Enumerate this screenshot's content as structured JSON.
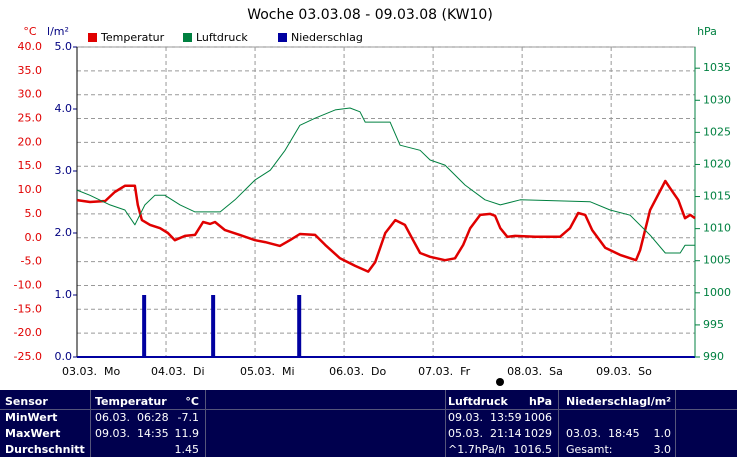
{
  "chart_data": {
    "type": "line",
    "title": "Woche 03.03.08 - 09.03.08 (KW10)",
    "y_unit": "°C",
    "y2_unit": "l/m²",
    "y3_unit": "hPa",
    "xlim": [
      0,
      166.6
    ],
    "xticks": [
      {
        "value": 0,
        "label": "03.03.  Mo"
      },
      {
        "value": 24,
        "label": "04.03.  Di"
      },
      {
        "value": 48,
        "label": "05.03.  Mi"
      },
      {
        "value": 72,
        "label": "06.03.  Do"
      },
      {
        "value": 96,
        "label": "07.03.  Fr"
      },
      {
        "value": 120,
        "label": "08.03.  Sa"
      },
      {
        "value": 144,
        "label": "09.03.  So"
      }
    ],
    "ylim": [
      -25,
      40
    ],
    "yticks": [
      {
        "value": 40,
        "label": "40.0"
      },
      {
        "value": 35,
        "label": "35.0"
      },
      {
        "value": 30,
        "label": "30.0"
      },
      {
        "value": 25,
        "label": "25.0"
      },
      {
        "value": 20,
        "label": "20.0"
      },
      {
        "value": 15,
        "label": "15.0"
      },
      {
        "value": 10,
        "label": "10.0"
      },
      {
        "value": 5,
        "label": "5.0"
      },
      {
        "value": 0,
        "label": "0.0"
      },
      {
        "value": -5,
        "label": "-5.0"
      },
      {
        "value": -10,
        "label": "-10.0"
      },
      {
        "value": -15,
        "label": "-15.0"
      },
      {
        "value": -20,
        "label": "-20.0"
      },
      {
        "value": -25,
        "label": "-25.0"
      }
    ],
    "y2lim": [
      0,
      5
    ],
    "y2ticks": [
      {
        "value": 5,
        "label": "5.0"
      },
      {
        "value": 4,
        "label": "4.0"
      },
      {
        "value": 3,
        "label": "3.0"
      },
      {
        "value": 2,
        "label": "2.0"
      },
      {
        "value": 1,
        "label": "1.0"
      },
      {
        "value": 0,
        "label": "0.0"
      }
    ],
    "y3lim": [
      990,
      1038.3
    ],
    "y3ticks": [
      990,
      995,
      1000,
      1005,
      1010,
      1015,
      1020,
      1025,
      1030,
      1035
    ],
    "grid": true,
    "series": [
      {
        "name": "Temperatur",
        "color": "#e00000",
        "type": "line",
        "axis": "y",
        "x": [
          0,
          3.5,
          7.6,
          10.2,
          12.9,
          15.6,
          16.4,
          17.5,
          19.7,
          22.4,
          24.5,
          26.4,
          29.1,
          31.8,
          34.0,
          35.9,
          37.2,
          39.9,
          43.9,
          48.0,
          50.7,
          54.7,
          57.4,
          60.1,
          64.2,
          66.9,
          70.9,
          75.0,
          78.5,
          80.4,
          83.1,
          85.8,
          88.4,
          90.6,
          92.5,
          95.2,
          99.2,
          101.9,
          104.1,
          106.0,
          108.7,
          111.4,
          112.7,
          114.1,
          116.0,
          118.1,
          123.5,
          130.2,
          132.9,
          135.1,
          137.0,
          138.9,
          142.4,
          146.4,
          150.7,
          151.8,
          154.5,
          158.6,
          159.9,
          162.1,
          163.9,
          165.3,
          166.6
        ],
        "values": [
          7.9,
          7.5,
          7.7,
          9.6,
          10.9,
          10.9,
          6.9,
          3.7,
          2.7,
          2.0,
          1.0,
          -0.5,
          0.4,
          0.6,
          3.3,
          2.9,
          3.3,
          1.6,
          0.6,
          -0.5,
          -0.9,
          -1.7,
          -0.5,
          0.8,
          0.6,
          -1.5,
          -4.3,
          -5.9,
          -7.1,
          -5.1,
          1.0,
          3.7,
          2.7,
          -0.5,
          -3.2,
          -4.0,
          -4.7,
          -4.3,
          -1.5,
          2.0,
          4.8,
          5.0,
          4.6,
          2.0,
          0.2,
          0.4,
          0.2,
          0.2,
          2.0,
          5.2,
          4.8,
          1.6,
          -2.1,
          -3.6,
          -4.7,
          -2.6,
          5.8,
          11.9,
          10.4,
          7.9,
          4.1,
          4.8,
          4.1
        ]
      },
      {
        "name": "Luftdruck",
        "color": "#008040",
        "type": "line",
        "axis": "y3",
        "x": [
          0,
          3.5,
          8.9,
          12.9,
          15.6,
          18.3,
          21.0,
          23.7,
          27.8,
          31.8,
          38.6,
          42.6,
          48.0,
          52.1,
          56.1,
          60.1,
          64.2,
          69.6,
          73.6,
          76.3,
          77.7,
          84.4,
          87.1,
          92.5,
          95.2,
          99.2,
          104.6,
          110.0,
          114.1,
          119.5,
          138.3,
          143.7,
          149.1,
          154.5,
          158.6,
          162.6,
          163.9,
          166.6
        ],
        "values": [
          1016.0,
          1015.2,
          1013.7,
          1012.9,
          1010.6,
          1013.7,
          1015.2,
          1015.2,
          1013.7,
          1012.6,
          1012.6,
          1014.5,
          1017.6,
          1019.1,
          1022.2,
          1026.1,
          1027.2,
          1028.5,
          1028.8,
          1028.2,
          1026.6,
          1026.6,
          1023.0,
          1022.2,
          1020.7,
          1019.9,
          1016.8,
          1014.5,
          1013.7,
          1014.5,
          1014.2,
          1012.9,
          1012.1,
          1009.0,
          1006.2,
          1006.2,
          1007.4,
          1007.4
        ]
      },
      {
        "name": "Niederschlag",
        "color": "#0000a0",
        "type": "bar",
        "axis": "y2",
        "x": [
          18.1,
          36.7,
          59.9
        ],
        "values": [
          1.0,
          1.0,
          1.0
        ]
      }
    ]
  },
  "table": {
    "header": {
      "sensor": "Sensor",
      "temp": "Temperatur",
      "temp_unit": "°C",
      "press": "Luftdruck",
      "press_unit": "hPa",
      "rain": "Niederschlag",
      "rain_unit": "l/m²"
    },
    "rows": [
      {
        "label": "MinWert",
        "temp_time": "06.03.  06:28",
        "temp": "-7.1",
        "press_time": "09.03.  13:59",
        "press": "1006"
      },
      {
        "label": "MaxWert",
        "temp_time": "09.03.  14:35",
        "temp": "11.9",
        "press_time": "05.03.  21:14",
        "press": "1029",
        "rain_time": "03.03.  18:45",
        "rain": "1.0"
      },
      {
        "label": "Durchschnitt",
        "temp": "1.45",
        "press_time": "^1.7hPa/h",
        "press": "1016.5",
        "rain_time": "Gesamt:",
        "rain": "3.0"
      }
    ]
  }
}
